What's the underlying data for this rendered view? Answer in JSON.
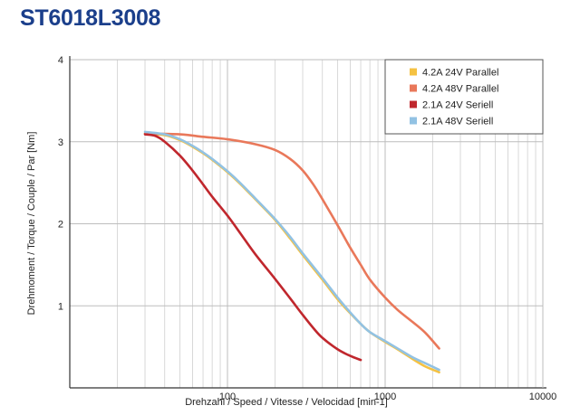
{
  "title": "ST6018L3008",
  "chart_data": {
    "type": "line",
    "title": "ST6018L3008",
    "xlabel": "Drehzahl / Speed / Vitesse / Velocidad [min-1]",
    "ylabel": "Drehmoment / Torque / Couple / Par [Nm]",
    "xscale": "log",
    "xlim": [
      10,
      10000
    ],
    "ylim": [
      0,
      4
    ],
    "x_ticks": [
      100,
      1000,
      10000
    ],
    "x_tick_labels": [
      "100",
      "1000",
      "10000"
    ],
    "y_ticks": [
      1,
      2,
      3,
      4
    ],
    "y_tick_labels": [
      "1",
      "2",
      "3",
      "4"
    ],
    "grid": true,
    "legend_position": "top-right",
    "series": [
      {
        "name": "4.2A 24V Parallel",
        "color": "#f5c242",
        "points": [
          [
            30,
            3.1
          ],
          [
            40,
            3.08
          ],
          [
            50,
            3.02
          ],
          [
            60,
            2.94
          ],
          [
            70,
            2.86
          ],
          [
            80,
            2.78
          ],
          [
            100,
            2.63
          ],
          [
            120,
            2.49
          ],
          [
            150,
            2.3
          ],
          [
            200,
            2.05
          ],
          [
            250,
            1.82
          ],
          [
            300,
            1.62
          ],
          [
            400,
            1.32
          ],
          [
            500,
            1.08
          ],
          [
            600,
            0.91
          ],
          [
            700,
            0.78
          ],
          [
            800,
            0.68
          ],
          [
            1000,
            0.56
          ],
          [
            1200,
            0.47
          ],
          [
            1500,
            0.35
          ],
          [
            1800,
            0.26
          ],
          [
            2200,
            0.19
          ]
        ]
      },
      {
        "name": "4.2A 48V Parallel",
        "color": "#e9785a",
        "points": [
          [
            30,
            3.1
          ],
          [
            50,
            3.09
          ],
          [
            70,
            3.06
          ],
          [
            100,
            3.03
          ],
          [
            150,
            2.97
          ],
          [
            200,
            2.9
          ],
          [
            250,
            2.79
          ],
          [
            300,
            2.65
          ],
          [
            350,
            2.48
          ],
          [
            400,
            2.3
          ],
          [
            500,
            1.98
          ],
          [
            600,
            1.71
          ],
          [
            700,
            1.5
          ],
          [
            800,
            1.32
          ],
          [
            1000,
            1.1
          ],
          [
            1200,
            0.95
          ],
          [
            1500,
            0.8
          ],
          [
            1800,
            0.67
          ],
          [
            2200,
            0.48
          ]
        ]
      },
      {
        "name": "2.1A 24V Seriell",
        "color": "#c0272d",
        "points": [
          [
            30,
            3.09
          ],
          [
            35,
            3.07
          ],
          [
            40,
            3.0
          ],
          [
            50,
            2.83
          ],
          [
            60,
            2.65
          ],
          [
            70,
            2.48
          ],
          [
            80,
            2.33
          ],
          [
            100,
            2.1
          ],
          [
            120,
            1.89
          ],
          [
            150,
            1.63
          ],
          [
            200,
            1.33
          ],
          [
            250,
            1.09
          ],
          [
            300,
            0.89
          ],
          [
            350,
            0.73
          ],
          [
            400,
            0.61
          ],
          [
            500,
            0.47
          ],
          [
            600,
            0.39
          ],
          [
            700,
            0.34
          ]
        ]
      },
      {
        "name": "2.1A 48V Seriell",
        "color": "#92c2e3",
        "points": [
          [
            30,
            3.12
          ],
          [
            40,
            3.09
          ],
          [
            50,
            3.03
          ],
          [
            60,
            2.95
          ],
          [
            70,
            2.87
          ],
          [
            80,
            2.79
          ],
          [
            100,
            2.64
          ],
          [
            120,
            2.5
          ],
          [
            150,
            2.31
          ],
          [
            200,
            2.06
          ],
          [
            250,
            1.84
          ],
          [
            300,
            1.64
          ],
          [
            400,
            1.34
          ],
          [
            500,
            1.1
          ],
          [
            600,
            0.92
          ],
          [
            700,
            0.78
          ],
          [
            800,
            0.68
          ],
          [
            1000,
            0.57
          ],
          [
            1200,
            0.48
          ],
          [
            1500,
            0.37
          ],
          [
            1800,
            0.3
          ],
          [
            2200,
            0.22
          ]
        ]
      }
    ]
  }
}
